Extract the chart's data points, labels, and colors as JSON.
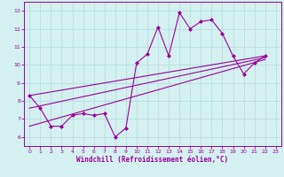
{
  "background_color": "#d4f0f0",
  "grid_color": "#b8dede",
  "line_color": "#990099",
  "marker_color": "#990099",
  "xlabel": "Windchill (Refroidissement éolien,°C)",
  "xlim": [
    -0.5,
    23.5
  ],
  "ylim": [
    5.5,
    13.5
  ],
  "yticks": [
    6,
    7,
    8,
    9,
    10,
    11,
    12,
    13
  ],
  "xticks": [
    0,
    1,
    2,
    3,
    4,
    5,
    6,
    7,
    8,
    9,
    10,
    11,
    12,
    13,
    14,
    15,
    16,
    17,
    18,
    19,
    20,
    21,
    22,
    23
  ],
  "jagged_x": [
    0,
    1,
    2,
    3,
    4,
    5,
    6,
    7,
    8,
    9,
    10,
    11,
    12,
    13,
    14,
    15,
    16,
    17,
    18,
    19,
    20,
    21,
    22
  ],
  "jagged_y": [
    8.3,
    7.6,
    6.6,
    6.6,
    7.2,
    7.3,
    7.2,
    7.3,
    6.0,
    6.5,
    10.1,
    10.6,
    12.1,
    10.5,
    12.9,
    12.0,
    12.4,
    12.5,
    11.75,
    10.5,
    9.5,
    10.1,
    10.5
  ],
  "trend1_x": [
    0,
    22
  ],
  "trend1_y": [
    8.3,
    10.5
  ],
  "trend2_x": [
    0,
    22
  ],
  "trend2_y": [
    7.6,
    10.4
  ],
  "trend3_x": [
    0,
    22
  ],
  "trend3_y": [
    6.6,
    10.3
  ]
}
